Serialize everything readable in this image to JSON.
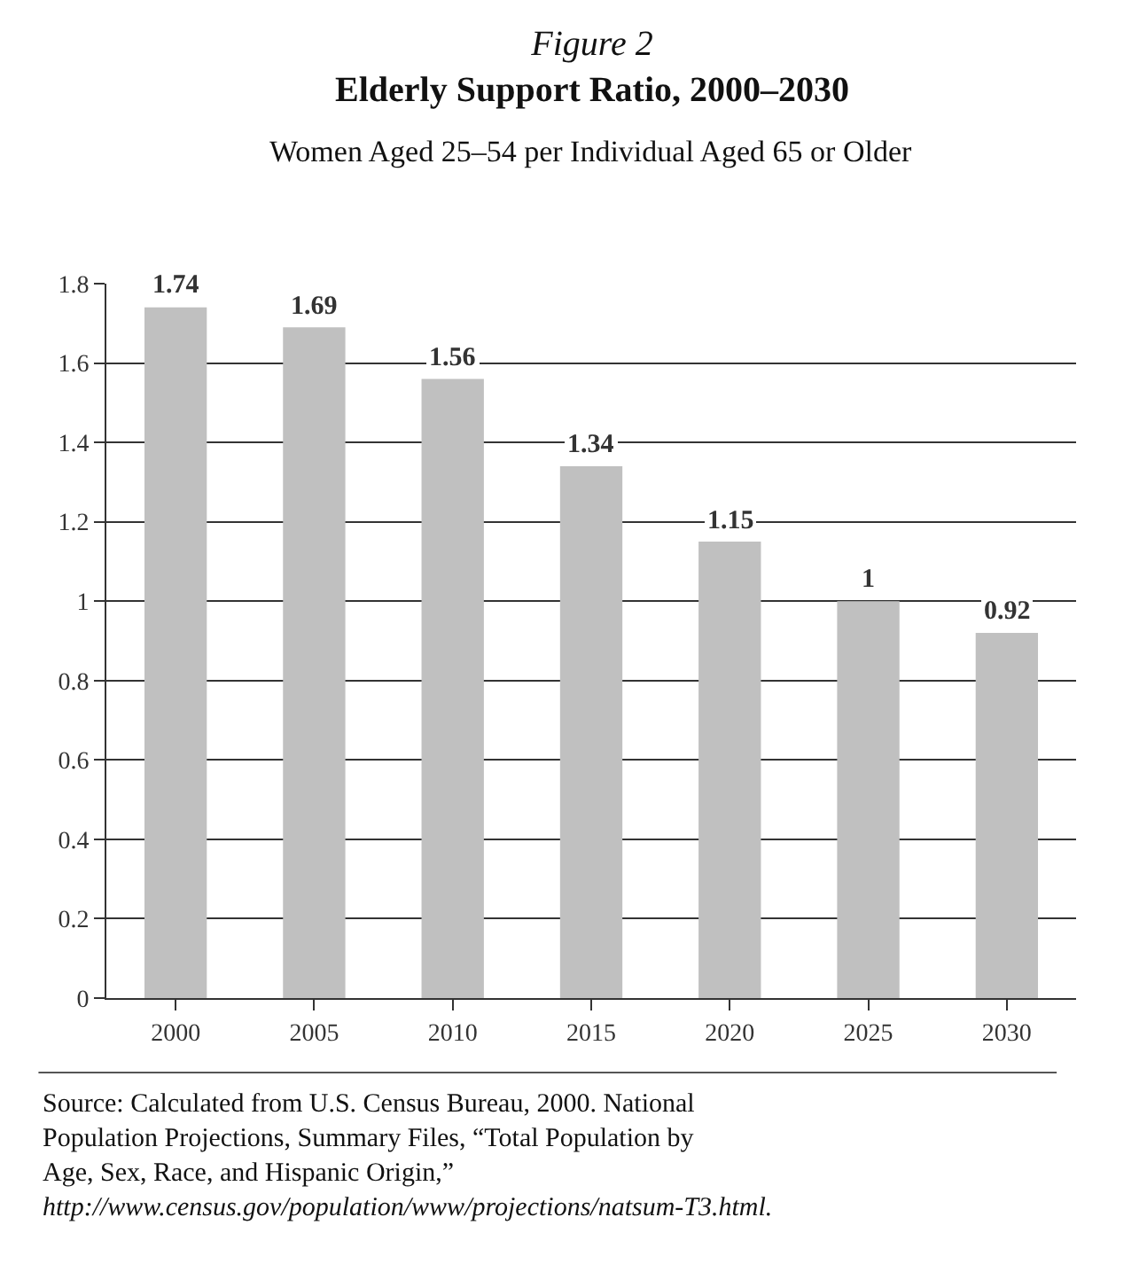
{
  "chart_data": {
    "type": "bar",
    "title": "Elderly Support Ratio, 2000–2030",
    "subtitle": "Women Aged 25–54 per Individual Aged 65 or Older",
    "annotations": [
      "Figure 2",
      "Source: Calculated from U.S. Census Bureau, 2000. National Population Projections, Summary Files, “Total Population by Age, Sex, Race, and Hispanic Origin,”",
      "http://www.census.gov/population/www/projections/natsum-T3.html."
    ],
    "categories": [
      "2000",
      "2005",
      "2010",
      "2015",
      "2020",
      "2025",
      "2030"
    ],
    "values": [
      1.74,
      1.69,
      1.56,
      1.34,
      1.15,
      1,
      0.92
    ],
    "color": "#c0c0c0",
    "data_labels": true,
    "grid": "y",
    "legend": false,
    "ylim": [
      0,
      1.8
    ],
    "yticks": [
      0,
      0.2,
      0.4,
      0.6,
      0.8,
      1,
      1.2,
      1.4,
      1.6,
      1.8
    ]
  }
}
